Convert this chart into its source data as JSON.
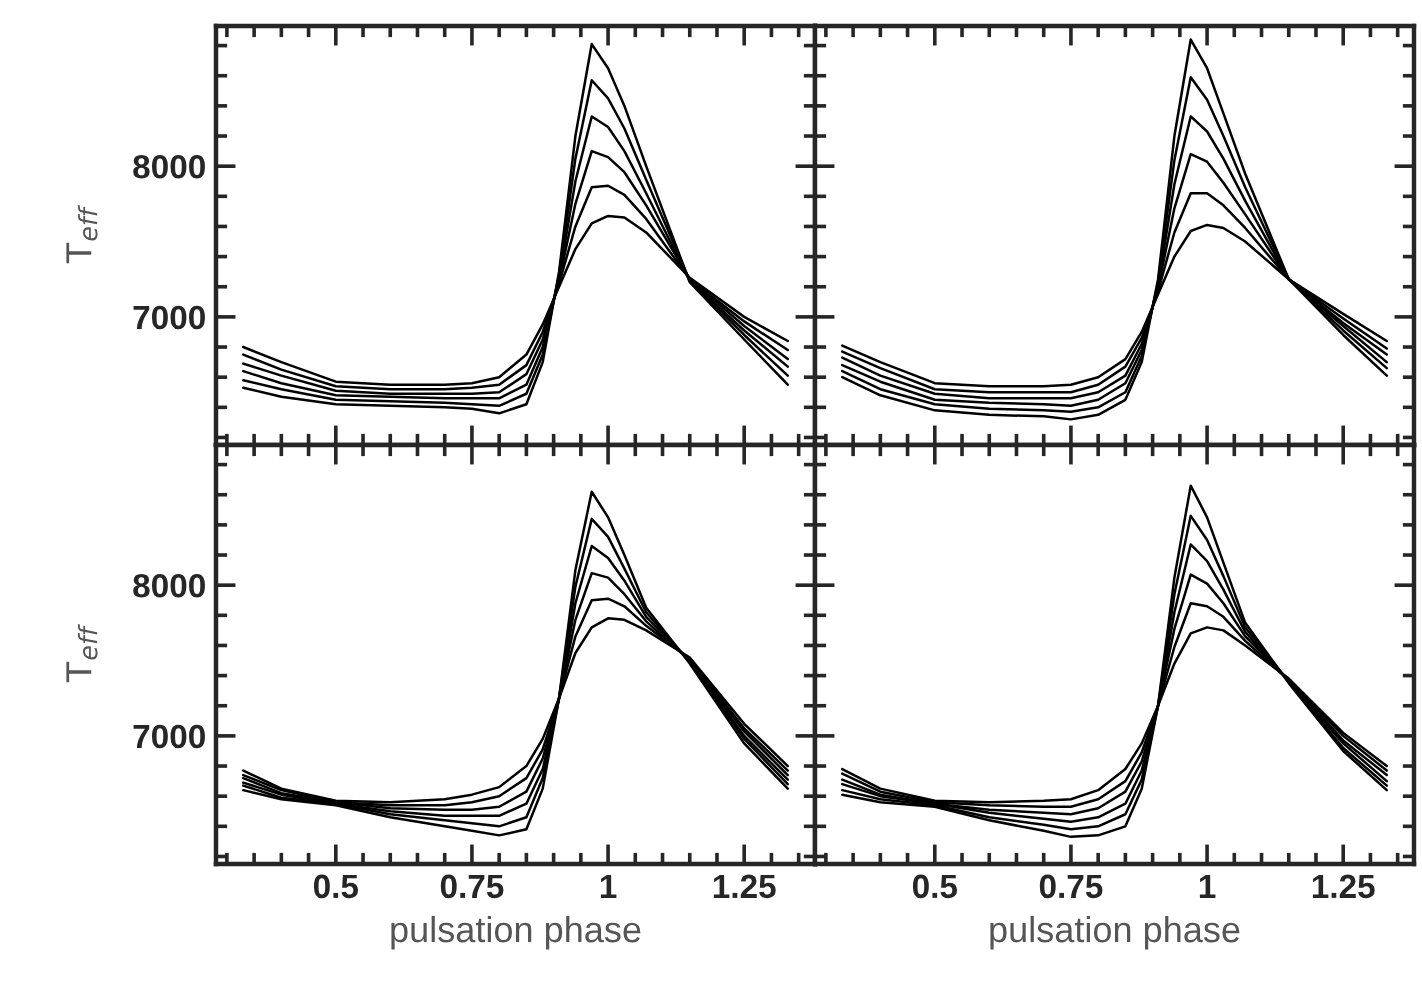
{
  "chart_data": [
    {
      "type": "line",
      "ylabel": "T$_{eff}$",
      "tick_labels": "y",
      "xlim": [
        0.28,
        1.38
      ],
      "ylim": [
        6150,
        8930
      ],
      "xticks": [
        {
          "value": 0.3,
          "label": null
        },
        {
          "value": 0.35,
          "label": null
        },
        {
          "value": 0.4,
          "label": null
        },
        {
          "value": 0.45,
          "label": null
        },
        0.5,
        {
          "value": 0.55,
          "label": null
        },
        {
          "value": 0.6,
          "label": null
        },
        {
          "value": 0.65,
          "label": null
        },
        {
          "value": 0.7,
          "label": null
        },
        0.75,
        {
          "value": 0.8,
          "label": null
        },
        {
          "value": 0.85,
          "label": null
        },
        {
          "value": 0.9,
          "label": null
        },
        {
          "value": 0.95,
          "label": null
        },
        1,
        {
          "value": 1.05,
          "label": null
        },
        {
          "value": 1.1,
          "label": null
        },
        {
          "value": 1.15,
          "label": null
        },
        {
          "value": 1.2,
          "label": null
        },
        1.25,
        {
          "value": 1.3,
          "label": null
        },
        {
          "value": 1.35,
          "label": null
        }
      ],
      "yticks": [
        {
          "value": 6200,
          "label": null
        },
        {
          "value": 6400,
          "label": null
        },
        {
          "value": 6600,
          "label": null
        },
        {
          "value": 6800,
          "label": null
        },
        7000,
        {
          "value": 7200,
          "label": null
        },
        {
          "value": 7400,
          "label": null
        },
        {
          "value": 7600,
          "label": null
        },
        {
          "value": 7800,
          "label": null
        },
        8000,
        {
          "value": 8200,
          "label": null
        },
        {
          "value": 8400,
          "label": null
        },
        {
          "value": 8600,
          "label": null
        },
        {
          "value": 8800,
          "label": null
        }
      ],
      "x": [
        0.33,
        0.4,
        0.5,
        0.6,
        0.7,
        0.75,
        0.8,
        0.85,
        0.88,
        0.91,
        0.94,
        0.97,
        1.0,
        1.03,
        1.07,
        1.15,
        1.25,
        1.33
      ],
      "series": [
        {
          "color": "#000000",
          "values": [
            6530,
            6470,
            6420,
            6410,
            6400,
            6390,
            6360,
            6420,
            6700,
            7300,
            8200,
            8810,
            8650,
            8400,
            8000,
            7230,
            6850,
            6550
          ]
        },
        {
          "color": "#000000",
          "values": [
            6580,
            6520,
            6450,
            6440,
            6430,
            6420,
            6410,
            6490,
            6750,
            7280,
            8050,
            8570,
            8450,
            8250,
            7910,
            7240,
            6880,
            6610
          ]
        },
        {
          "color": "#000000",
          "values": [
            6640,
            6560,
            6480,
            6470,
            6460,
            6460,
            6460,
            6550,
            6800,
            7260,
            7900,
            8330,
            8260,
            8100,
            7820,
            7240,
            6910,
            6670
          ]
        },
        {
          "color": "#000000",
          "values": [
            6690,
            6610,
            6510,
            6490,
            6490,
            6490,
            6500,
            6620,
            6850,
            7240,
            7750,
            8100,
            8060,
            7960,
            7740,
            7250,
            6940,
            6720
          ]
        },
        {
          "color": "#000000",
          "values": [
            6750,
            6650,
            6540,
            6520,
            6520,
            6530,
            6550,
            6680,
            6900,
            7220,
            7600,
            7860,
            7870,
            7810,
            7650,
            7250,
            6970,
            6780
          ]
        },
        {
          "color": "#000000",
          "values": [
            6800,
            6700,
            6570,
            6550,
            6550,
            6560,
            6600,
            6750,
            6950,
            7200,
            7450,
            7620,
            7670,
            7660,
            7560,
            7260,
            7000,
            6840
          ]
        }
      ]
    },
    {
      "type": "line",
      "tick_labels": false,
      "xlim": [
        0.28,
        1.38
      ],
      "ylim": [
        6150,
        8930
      ],
      "xticks": [
        {
          "value": 0.3,
          "label": null
        },
        {
          "value": 0.35,
          "label": null
        },
        {
          "value": 0.4,
          "label": null
        },
        {
          "value": 0.45,
          "label": null
        },
        0.5,
        {
          "value": 0.55,
          "label": null
        },
        {
          "value": 0.6,
          "label": null
        },
        {
          "value": 0.65,
          "label": null
        },
        {
          "value": 0.7,
          "label": null
        },
        0.75,
        {
          "value": 0.8,
          "label": null
        },
        {
          "value": 0.85,
          "label": null
        },
        {
          "value": 0.9,
          "label": null
        },
        {
          "value": 0.95,
          "label": null
        },
        1,
        {
          "value": 1.05,
          "label": null
        },
        {
          "value": 1.1,
          "label": null
        },
        {
          "value": 1.15,
          "label": null
        },
        {
          "value": 1.2,
          "label": null
        },
        1.25,
        {
          "value": 1.3,
          "label": null
        },
        {
          "value": 1.35,
          "label": null
        }
      ],
      "yticks": [
        {
          "value": 6200,
          "label": null
        },
        {
          "value": 6400,
          "label": null
        },
        {
          "value": 6600,
          "label": null
        },
        {
          "value": 6800,
          "label": null
        },
        7000,
        {
          "value": 7200,
          "label": null
        },
        {
          "value": 7400,
          "label": null
        },
        {
          "value": 7600,
          "label": null
        },
        {
          "value": 7800,
          "label": null
        },
        8000,
        {
          "value": 8200,
          "label": null
        },
        {
          "value": 8400,
          "label": null
        },
        {
          "value": 8600,
          "label": null
        },
        {
          "value": 8800,
          "label": null
        }
      ],
      "x": [
        0.33,
        0.4,
        0.5,
        0.6,
        0.7,
        0.75,
        0.8,
        0.85,
        0.88,
        0.91,
        0.94,
        0.97,
        1.0,
        1.03,
        1.07,
        1.15,
        1.25,
        1.33
      ],
      "series": [
        {
          "color": "#000000",
          "values": [
            6600,
            6480,
            6380,
            6350,
            6340,
            6320,
            6350,
            6450,
            6700,
            7250,
            8200,
            8840,
            8650,
            8350,
            7950,
            7250,
            6880,
            6610
          ]
        },
        {
          "color": "#000000",
          "values": [
            6640,
            6520,
            6420,
            6390,
            6380,
            6370,
            6400,
            6500,
            6740,
            7230,
            8040,
            8590,
            8440,
            8200,
            7860,
            7250,
            6910,
            6660
          ]
        },
        {
          "color": "#000000",
          "values": [
            6680,
            6570,
            6450,
            6430,
            6420,
            6410,
            6450,
            6560,
            6780,
            7210,
            7880,
            8330,
            8230,
            8050,
            7770,
            7250,
            6940,
            6700
          ]
        },
        {
          "color": "#000000",
          "values": [
            6730,
            6610,
            6490,
            6460,
            6460,
            6460,
            6500,
            6610,
            6820,
            7190,
            7720,
            8080,
            8030,
            7890,
            7680,
            7250,
            6960,
            6750
          ]
        },
        {
          "color": "#000000",
          "values": [
            6770,
            6660,
            6520,
            6500,
            6500,
            6500,
            6550,
            6670,
            6860,
            7170,
            7560,
            7820,
            7820,
            7740,
            7590,
            7250,
            6990,
            6790
          ]
        },
        {
          "color": "#000000",
          "values": [
            6810,
            6700,
            6560,
            6540,
            6540,
            6550,
            6600,
            6720,
            6900,
            7150,
            7400,
            7570,
            7610,
            7590,
            7500,
            7250,
            7020,
            6840
          ]
        }
      ]
    },
    {
      "type": "line",
      "xlabel": "pulsation phase",
      "ylabel": "T$_{eff}$",
      "xlim": [
        0.28,
        1.38
      ],
      "ylim": [
        6150,
        8930
      ],
      "xticks": [
        {
          "value": 0.3,
          "label": null
        },
        {
          "value": 0.35,
          "label": null
        },
        {
          "value": 0.4,
          "label": null
        },
        {
          "value": 0.45,
          "label": null
        },
        0.5,
        {
          "value": 0.55,
          "label": null
        },
        {
          "value": 0.6,
          "label": null
        },
        {
          "value": 0.65,
          "label": null
        },
        {
          "value": 0.7,
          "label": null
        },
        0.75,
        {
          "value": 0.8,
          "label": null
        },
        {
          "value": 0.85,
          "label": null
        },
        {
          "value": 0.9,
          "label": null
        },
        {
          "value": 0.95,
          "label": null
        },
        1,
        {
          "value": 1.05,
          "label": null
        },
        {
          "value": 1.1,
          "label": null
        },
        {
          "value": 1.15,
          "label": null
        },
        {
          "value": 1.2,
          "label": null
        },
        1.25,
        {
          "value": 1.3,
          "label": null
        },
        {
          "value": 1.35,
          "label": null
        }
      ],
      "yticks": [
        {
          "value": 6200,
          "label": null
        },
        {
          "value": 6400,
          "label": null
        },
        {
          "value": 6600,
          "label": null
        },
        {
          "value": 6800,
          "label": null
        },
        7000,
        {
          "value": 7200,
          "label": null
        },
        {
          "value": 7400,
          "label": null
        },
        {
          "value": 7600,
          "label": null
        },
        {
          "value": 7800,
          "label": null
        },
        8000,
        {
          "value": 8200,
          "label": null
        },
        {
          "value": 8400,
          "label": null
        },
        {
          "value": 8600,
          "label": null
        },
        {
          "value": 8800,
          "label": null
        }
      ],
      "x": [
        0.33,
        0.4,
        0.5,
        0.6,
        0.7,
        0.75,
        0.8,
        0.85,
        0.88,
        0.91,
        0.94,
        0.97,
        1.0,
        1.03,
        1.07,
        1.15,
        1.25,
        1.33
      ],
      "series": [
        {
          "color": "#000000",
          "values": [
            6640,
            6580,
            6540,
            6460,
            6400,
            6370,
            6340,
            6380,
            6650,
            7250,
            8100,
            8620,
            8450,
            8200,
            7850,
            7480,
            6950,
            6650
          ]
        },
        {
          "color": "#000000",
          "values": [
            6670,
            6590,
            6550,
            6480,
            6440,
            6420,
            6400,
            6460,
            6720,
            7250,
            7990,
            8440,
            8320,
            8110,
            7820,
            7490,
            6980,
            6680
          ]
        },
        {
          "color": "#000000",
          "values": [
            6690,
            6610,
            6550,
            6500,
            6470,
            6470,
            6470,
            6550,
            6780,
            7250,
            7880,
            8260,
            8180,
            8030,
            7790,
            7500,
            7000,
            6710
          ]
        },
        {
          "color": "#000000",
          "values": [
            6720,
            6620,
            6560,
            6520,
            6510,
            6510,
            6530,
            6630,
            6850,
            7250,
            7770,
            8080,
            8050,
            7940,
            7760,
            7500,
            7030,
            6740
          ]
        },
        {
          "color": "#000000",
          "values": [
            6740,
            6640,
            6560,
            6540,
            6540,
            6560,
            6600,
            6720,
            6910,
            7250,
            7660,
            7900,
            7910,
            7860,
            7730,
            7510,
            7050,
            6770
          ]
        },
        {
          "color": "#000000",
          "values": [
            6770,
            6650,
            6570,
            6560,
            6580,
            6610,
            6660,
            6800,
            6980,
            7250,
            7550,
            7720,
            7780,
            7770,
            7700,
            7520,
            7080,
            6800
          ]
        }
      ]
    },
    {
      "type": "line",
      "xlabel": "pulsation phase",
      "tick_labels": "x",
      "xlim": [
        0.28,
        1.38
      ],
      "ylim": [
        6150,
        8930
      ],
      "xticks": [
        {
          "value": 0.3,
          "label": null
        },
        {
          "value": 0.35,
          "label": null
        },
        {
          "value": 0.4,
          "label": null
        },
        {
          "value": 0.45,
          "label": null
        },
        0.5,
        {
          "value": 0.55,
          "label": null
        },
        {
          "value": 0.6,
          "label": null
        },
        {
          "value": 0.65,
          "label": null
        },
        {
          "value": 0.7,
          "label": null
        },
        0.75,
        {
          "value": 0.8,
          "label": null
        },
        {
          "value": 0.85,
          "label": null
        },
        {
          "value": 0.9,
          "label": null
        },
        {
          "value": 0.95,
          "label": null
        },
        1,
        {
          "value": 1.05,
          "label": null
        },
        {
          "value": 1.1,
          "label": null
        },
        {
          "value": 1.15,
          "label": null
        },
        {
          "value": 1.2,
          "label": null
        },
        1.25,
        {
          "value": 1.3,
          "label": null
        },
        {
          "value": 1.35,
          "label": null
        }
      ],
      "yticks": [
        {
          "value": 6200,
          "label": null
        },
        {
          "value": 6400,
          "label": null
        },
        {
          "value": 6600,
          "label": null
        },
        {
          "value": 6800,
          "label": null
        },
        7000,
        {
          "value": 7200,
          "label": null
        },
        {
          "value": 7400,
          "label": null
        },
        {
          "value": 7600,
          "label": null
        },
        {
          "value": 7800,
          "label": null
        },
        8000,
        {
          "value": 8200,
          "label": null
        },
        {
          "value": 8400,
          "label": null
        },
        {
          "value": 8600,
          "label": null
        },
        {
          "value": 8800,
          "label": null
        }
      ],
      "x": [
        0.33,
        0.4,
        0.5,
        0.6,
        0.7,
        0.75,
        0.8,
        0.85,
        0.88,
        0.91,
        0.94,
        0.97,
        1.0,
        1.03,
        1.07,
        1.15,
        1.25,
        1.33
      ],
      "series": [
        {
          "color": "#000000",
          "values": [
            6610,
            6560,
            6530,
            6440,
            6370,
            6330,
            6340,
            6400,
            6650,
            7200,
            8050,
            8660,
            8450,
            8150,
            7750,
            7350,
            6900,
            6640
          ]
        },
        {
          "color": "#000000",
          "values": [
            6640,
            6580,
            6540,
            6460,
            6410,
            6380,
            6400,
            6480,
            6710,
            7200,
            7940,
            8460,
            8300,
            8060,
            7720,
            7360,
            6920,
            6670
          ]
        },
        {
          "color": "#000000",
          "values": [
            6680,
            6600,
            6550,
            6490,
            6450,
            6430,
            6460,
            6550,
            6770,
            7200,
            7820,
            8270,
            8160,
            7970,
            7690,
            7360,
            6950,
            6700
          ]
        },
        {
          "color": "#000000",
          "values": [
            6710,
            6610,
            6550,
            6510,
            6490,
            6480,
            6520,
            6630,
            6830,
            7200,
            7710,
            8070,
            8010,
            7880,
            7660,
            7370,
            6970,
            6740
          ]
        },
        {
          "color": "#000000",
          "values": [
            6750,
            6630,
            6560,
            6540,
            6530,
            6530,
            6580,
            6700,
            6890,
            7200,
            7590,
            7880,
            7860,
            7790,
            7630,
            7370,
            7000,
            6770
          ]
        },
        {
          "color": "#000000",
          "values": [
            6780,
            6650,
            6570,
            6560,
            6570,
            6580,
            6640,
            6780,
            6950,
            7200,
            7480,
            7680,
            7720,
            7700,
            7600,
            7380,
            7020,
            6800
          ]
        }
      ]
    }
  ]
}
